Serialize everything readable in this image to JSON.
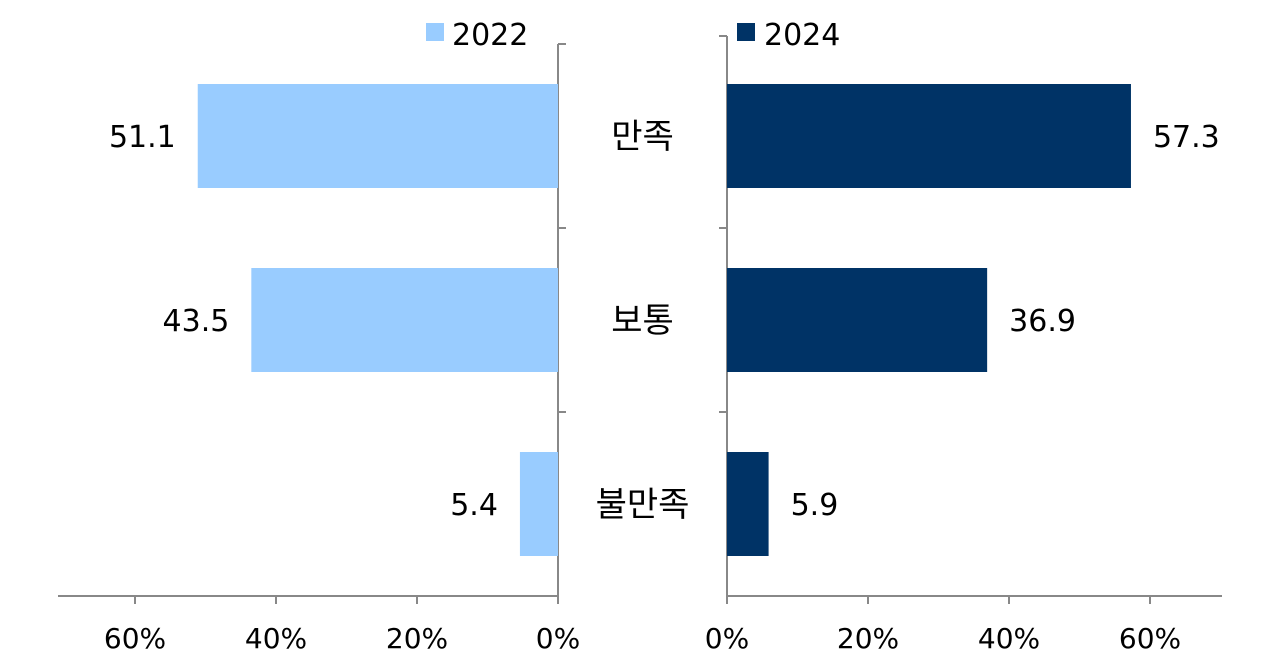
{
  "chart_data": {
    "type": "bar",
    "orientation": "horizontal",
    "layout": "back-to-back",
    "categories": [
      "만족",
      "보통",
      "불만족"
    ],
    "series": [
      {
        "name": "2022",
        "values": [
          51.1,
          43.5,
          5.4
        ],
        "color": "#99ccff",
        "direction": "left"
      },
      {
        "name": "2024",
        "values": [
          57.3,
          36.9,
          5.9
        ],
        "color": "#003366",
        "direction": "right"
      }
    ],
    "data_labels": {
      "2022": [
        "51.1",
        "43.5",
        "5.4"
      ],
      "2024": [
        "57.3",
        "36.9",
        "5.9"
      ]
    },
    "xlim_left": [
      0,
      70
    ],
    "xlim_right": [
      0,
      70
    ],
    "ticks_left": [
      "60%",
      "40%",
      "20%",
      "0%"
    ],
    "ticks_right": [
      "0%",
      "20%",
      "40%",
      "60%"
    ],
    "tick_values_left": [
      60,
      40,
      20,
      0
    ],
    "tick_values_right": [
      0,
      20,
      40,
      60
    ],
    "legend": "top",
    "grid": false
  }
}
